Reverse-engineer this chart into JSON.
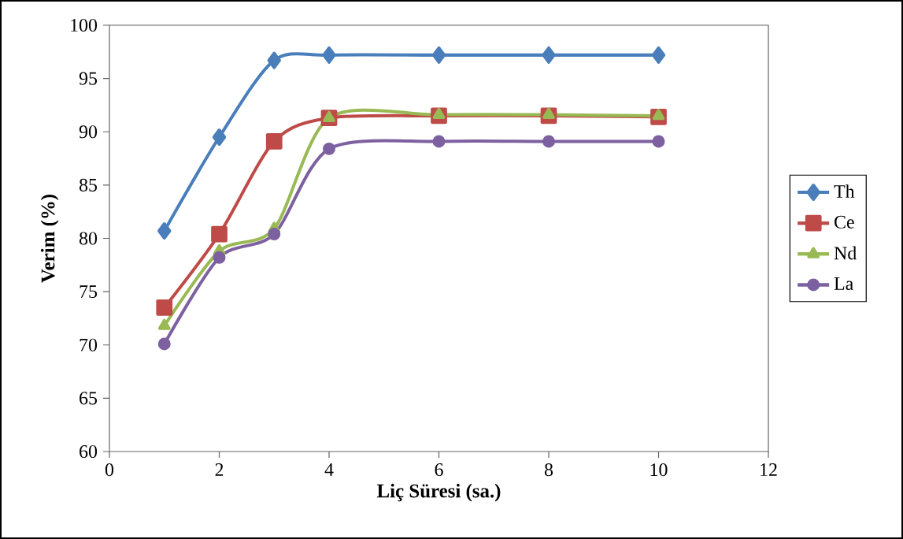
{
  "chart_data": {
    "type": "line",
    "xlabel": "Liç Süresi (sa.)",
    "ylabel": "Verim (%)",
    "xlim": [
      0,
      12
    ],
    "xticks": [
      0,
      2,
      4,
      6,
      8,
      10,
      12
    ],
    "ylim": [
      60,
      100
    ],
    "yticks": [
      60,
      65,
      70,
      75,
      80,
      85,
      90,
      95,
      100
    ],
    "x": [
      1,
      2,
      3,
      4,
      6,
      8,
      10
    ],
    "grid": false,
    "legend": "right",
    "line_style": "solid",
    "series": [
      {
        "name": "Th",
        "color": "#4a7ebb",
        "marker": "diamond",
        "values": [
          80.7,
          89.5,
          96.7,
          97.2,
          97.2,
          97.2,
          97.2
        ]
      },
      {
        "name": "Ce",
        "color": "#be4b48",
        "marker": "square",
        "values": [
          73.5,
          80.4,
          89.1,
          91.3,
          91.5,
          91.5,
          91.4
        ]
      },
      {
        "name": "Nd",
        "color": "#98b954",
        "marker": "triangle",
        "values": [
          71.8,
          78.8,
          80.9,
          91.3,
          91.6,
          91.6,
          91.5
        ]
      },
      {
        "name": "La",
        "color": "#7d60a0",
        "marker": "circle",
        "values": [
          70.1,
          78.2,
          80.4,
          88.4,
          89.1,
          89.1,
          89.1
        ]
      }
    ]
  }
}
